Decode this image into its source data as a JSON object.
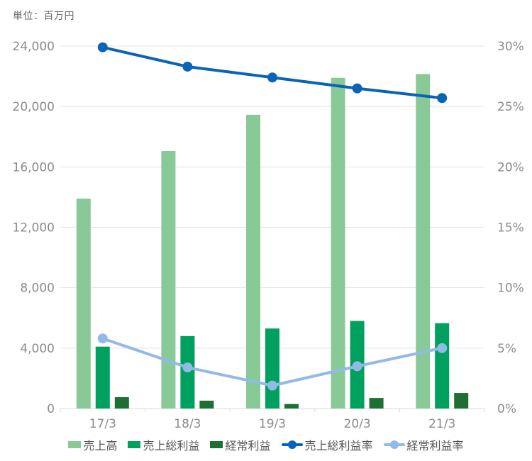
{
  "unit_label": "単位：百万円",
  "colors": {
    "sales": "#89C997",
    "gross_profit": "#00A05F",
    "ordinary_income": "#1E6F33",
    "gross_margin": "#0A64B5",
    "ordinary_margin": "#92B9E8",
    "grid": "#E3E3E3",
    "axis_line": "#D9D9D9",
    "axis_text": "#8C8C8C",
    "legend_text": "#555555",
    "title_text": "#666666"
  },
  "chart_data": {
    "type": "combo",
    "title": "単位：百万円",
    "categories": [
      "17/3",
      "18/3",
      "19/3",
      "20/3",
      "21/3"
    ],
    "bar_series": [
      {
        "name": "売上高",
        "axis": "left",
        "color_key": "sales",
        "values": [
          13900,
          17050,
          19450,
          21900,
          22150
        ]
      },
      {
        "name": "売上総利益",
        "axis": "left",
        "color_key": "gross_profit",
        "values": [
          4100,
          4800,
          5300,
          5800,
          5650
        ]
      },
      {
        "name": "経常利益",
        "axis": "left",
        "color_key": "ordinary_income",
        "values": [
          750,
          520,
          300,
          700,
          1030
        ]
      }
    ],
    "line_series": [
      {
        "name": "売上総利益率",
        "axis": "right",
        "color_key": "gross_margin",
        "values": [
          29.9,
          28.3,
          27.4,
          26.5,
          25.7
        ]
      },
      {
        "name": "経常利益率",
        "axis": "right",
        "color_key": "ordinary_margin",
        "values": [
          5.8,
          3.4,
          1.9,
          3.5,
          5.0
        ]
      }
    ],
    "left_axis": {
      "min": 0,
      "max": 24000,
      "step": 4000,
      "tick_labels": [
        "0",
        "4,000",
        "8,000",
        "12,000",
        "16,000",
        "20,000",
        "24,000"
      ]
    },
    "right_axis": {
      "min": 0,
      "max": 30,
      "step": 5,
      "tick_labels": [
        "0%",
        "5%",
        "10%",
        "15%",
        "20%",
        "25%",
        "30%"
      ]
    },
    "grid": true,
    "legend_position": "bottom"
  }
}
